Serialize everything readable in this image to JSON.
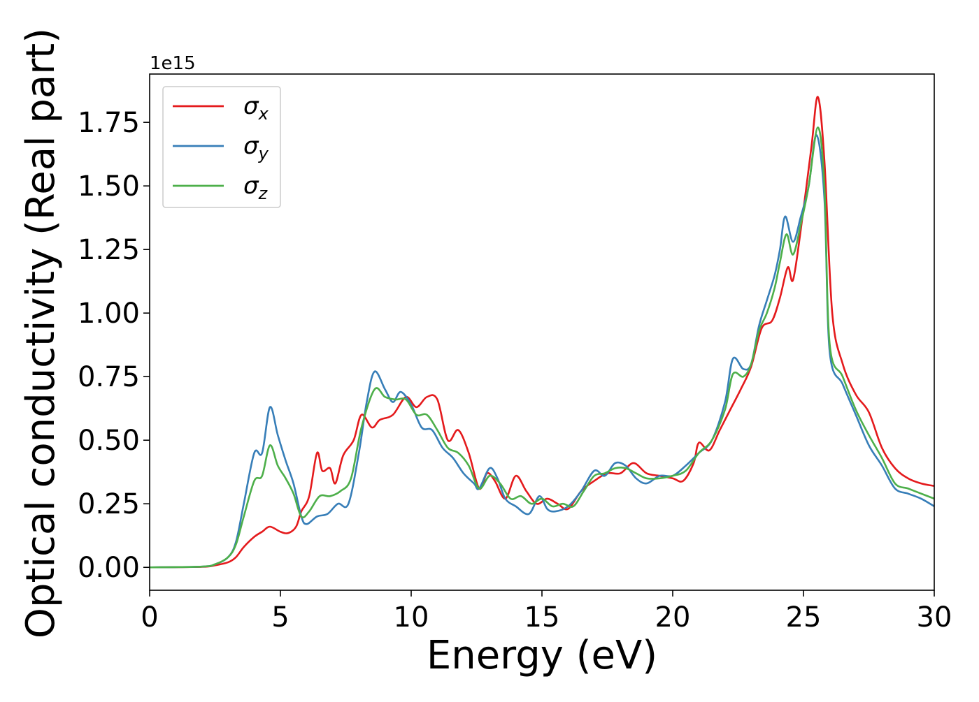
{
  "chart_data": {
    "type": "line",
    "xlabel": "Energy (eV)",
    "ylabel": "Optical conductivity (Real part)",
    "y_offset_label": "1e15",
    "xlim": [
      0,
      30
    ],
    "ylim": [
      -0.09,
      1.94
    ],
    "x_ticks": [
      0,
      5,
      10,
      15,
      20,
      25,
      30
    ],
    "y_ticks": [
      0.0,
      0.25,
      0.5,
      0.75,
      1.0,
      1.25,
      1.5,
      1.75
    ],
    "y_tick_labels": [
      "0.00",
      "0.25",
      "0.50",
      "0.75",
      "1.00",
      "1.25",
      "1.50",
      "1.75"
    ],
    "grid": false,
    "legend_position": "top-left",
    "series": [
      {
        "name": "σx",
        "symbol": "σ",
        "subscript": "x",
        "color": "#e41a1c",
        "points": [
          [
            0,
            0
          ],
          [
            2,
            0.002
          ],
          [
            2.5,
            0.008
          ],
          [
            3,
            0.02
          ],
          [
            3.3,
            0.04
          ],
          [
            3.6,
            0.08
          ],
          [
            4.0,
            0.12
          ],
          [
            4.3,
            0.14
          ],
          [
            4.6,
            0.16
          ],
          [
            5.0,
            0.14
          ],
          [
            5.3,
            0.135
          ],
          [
            5.6,
            0.16
          ],
          [
            5.8,
            0.22
          ],
          [
            6.1,
            0.28
          ],
          [
            6.4,
            0.45
          ],
          [
            6.6,
            0.38
          ],
          [
            6.9,
            0.39
          ],
          [
            7.1,
            0.33
          ],
          [
            7.4,
            0.44
          ],
          [
            7.8,
            0.5
          ],
          [
            8.1,
            0.6
          ],
          [
            8.5,
            0.55
          ],
          [
            8.8,
            0.58
          ],
          [
            9.3,
            0.6
          ],
          [
            9.8,
            0.67
          ],
          [
            10.2,
            0.63
          ],
          [
            10.6,
            0.67
          ],
          [
            11.0,
            0.66
          ],
          [
            11.4,
            0.5
          ],
          [
            11.8,
            0.54
          ],
          [
            12.2,
            0.45
          ],
          [
            12.6,
            0.31
          ],
          [
            12.9,
            0.37
          ],
          [
            13.2,
            0.34
          ],
          [
            13.6,
            0.27
          ],
          [
            14.0,
            0.36
          ],
          [
            14.4,
            0.3
          ],
          [
            14.8,
            0.25
          ],
          [
            15.2,
            0.27
          ],
          [
            15.6,
            0.25
          ],
          [
            16.0,
            0.23
          ],
          [
            16.5,
            0.3
          ],
          [
            17.0,
            0.34
          ],
          [
            17.5,
            0.37
          ],
          [
            18.0,
            0.37
          ],
          [
            18.5,
            0.41
          ],
          [
            19.0,
            0.37
          ],
          [
            19.5,
            0.36
          ],
          [
            20.0,
            0.35
          ],
          [
            20.4,
            0.34
          ],
          [
            20.8,
            0.41
          ],
          [
            21.0,
            0.49
          ],
          [
            21.4,
            0.46
          ],
          [
            21.8,
            0.54
          ],
          [
            22.2,
            0.62
          ],
          [
            22.6,
            0.7
          ],
          [
            23.0,
            0.79
          ],
          [
            23.4,
            0.94
          ],
          [
            23.8,
            0.97
          ],
          [
            24.1,
            1.06
          ],
          [
            24.4,
            1.18
          ],
          [
            24.6,
            1.13
          ],
          [
            24.9,
            1.33
          ],
          [
            25.3,
            1.65
          ],
          [
            25.55,
            1.85
          ],
          [
            25.8,
            1.6
          ],
          [
            26.1,
            1.0
          ],
          [
            26.5,
            0.8
          ],
          [
            27.0,
            0.68
          ],
          [
            27.5,
            0.61
          ],
          [
            28.0,
            0.47
          ],
          [
            28.5,
            0.39
          ],
          [
            29.0,
            0.35
          ],
          [
            29.5,
            0.33
          ],
          [
            30,
            0.32
          ]
        ]
      },
      {
        "name": "σy",
        "symbol": "σ",
        "subscript": "y",
        "color": "#377eb8",
        "points": [
          [
            0,
            0
          ],
          [
            2,
            0.003
          ],
          [
            2.5,
            0.012
          ],
          [
            3,
            0.04
          ],
          [
            3.3,
            0.1
          ],
          [
            3.6,
            0.25
          ],
          [
            4.0,
            0.45
          ],
          [
            4.3,
            0.45
          ],
          [
            4.6,
            0.63
          ],
          [
            4.9,
            0.52
          ],
          [
            5.2,
            0.42
          ],
          [
            5.5,
            0.33
          ],
          [
            5.8,
            0.2
          ],
          [
            6.0,
            0.17
          ],
          [
            6.4,
            0.2
          ],
          [
            6.8,
            0.21
          ],
          [
            7.2,
            0.25
          ],
          [
            7.6,
            0.25
          ],
          [
            8.0,
            0.45
          ],
          [
            8.3,
            0.65
          ],
          [
            8.6,
            0.77
          ],
          [
            9.0,
            0.7
          ],
          [
            9.3,
            0.65
          ],
          [
            9.6,
            0.69
          ],
          [
            10.0,
            0.64
          ],
          [
            10.4,
            0.55
          ],
          [
            10.8,
            0.54
          ],
          [
            11.2,
            0.47
          ],
          [
            11.6,
            0.43
          ],
          [
            12.0,
            0.37
          ],
          [
            12.4,
            0.33
          ],
          [
            12.6,
            0.31
          ],
          [
            13.0,
            0.39
          ],
          [
            13.3,
            0.35
          ],
          [
            13.6,
            0.27
          ],
          [
            14.0,
            0.24
          ],
          [
            14.5,
            0.21
          ],
          [
            14.9,
            0.28
          ],
          [
            15.2,
            0.23
          ],
          [
            15.5,
            0.22
          ],
          [
            16.0,
            0.24
          ],
          [
            16.5,
            0.3
          ],
          [
            17.0,
            0.38
          ],
          [
            17.4,
            0.36
          ],
          [
            17.8,
            0.41
          ],
          [
            18.2,
            0.4
          ],
          [
            18.6,
            0.35
          ],
          [
            19.0,
            0.33
          ],
          [
            19.5,
            0.36
          ],
          [
            20.0,
            0.36
          ],
          [
            20.5,
            0.4
          ],
          [
            21.0,
            0.45
          ],
          [
            21.5,
            0.5
          ],
          [
            22.0,
            0.65
          ],
          [
            22.3,
            0.82
          ],
          [
            22.7,
            0.78
          ],
          [
            23.0,
            0.8
          ],
          [
            23.3,
            0.95
          ],
          [
            23.6,
            1.05
          ],
          [
            23.9,
            1.15
          ],
          [
            24.1,
            1.25
          ],
          [
            24.3,
            1.38
          ],
          [
            24.6,
            1.28
          ],
          [
            24.9,
            1.38
          ],
          [
            25.2,
            1.5
          ],
          [
            25.5,
            1.7
          ],
          [
            25.8,
            1.45
          ],
          [
            26.0,
            0.85
          ],
          [
            26.5,
            0.72
          ],
          [
            27.0,
            0.6
          ],
          [
            27.5,
            0.48
          ],
          [
            28.0,
            0.4
          ],
          [
            28.5,
            0.31
          ],
          [
            29.0,
            0.29
          ],
          [
            29.5,
            0.27
          ],
          [
            30,
            0.24
          ]
        ]
      },
      {
        "name": "σz",
        "symbol": "σ",
        "subscript": "z",
        "color": "#4daf4a",
        "points": [
          [
            0,
            0
          ],
          [
            2,
            0.003
          ],
          [
            2.5,
            0.012
          ],
          [
            3,
            0.04
          ],
          [
            3.3,
            0.09
          ],
          [
            3.6,
            0.2
          ],
          [
            4.0,
            0.34
          ],
          [
            4.3,
            0.36
          ],
          [
            4.6,
            0.48
          ],
          [
            4.9,
            0.4
          ],
          [
            5.2,
            0.35
          ],
          [
            5.5,
            0.29
          ],
          [
            5.8,
            0.2
          ],
          [
            6.1,
            0.22
          ],
          [
            6.5,
            0.28
          ],
          [
            6.9,
            0.28
          ],
          [
            7.3,
            0.3
          ],
          [
            7.7,
            0.35
          ],
          [
            8.1,
            0.55
          ],
          [
            8.6,
            0.7
          ],
          [
            9.0,
            0.67
          ],
          [
            9.4,
            0.66
          ],
          [
            9.8,
            0.66
          ],
          [
            10.2,
            0.6
          ],
          [
            10.6,
            0.6
          ],
          [
            11.0,
            0.54
          ],
          [
            11.4,
            0.47
          ],
          [
            11.8,
            0.45
          ],
          [
            12.2,
            0.4
          ],
          [
            12.6,
            0.31
          ],
          [
            13.0,
            0.36
          ],
          [
            13.4,
            0.33
          ],
          [
            13.8,
            0.27
          ],
          [
            14.2,
            0.28
          ],
          [
            14.6,
            0.25
          ],
          [
            15.0,
            0.27
          ],
          [
            15.4,
            0.24
          ],
          [
            15.8,
            0.25
          ],
          [
            16.2,
            0.24
          ],
          [
            16.6,
            0.3
          ],
          [
            17.0,
            0.36
          ],
          [
            17.4,
            0.37
          ],
          [
            17.8,
            0.39
          ],
          [
            18.2,
            0.39
          ],
          [
            18.6,
            0.37
          ],
          [
            19.0,
            0.35
          ],
          [
            19.5,
            0.35
          ],
          [
            20.0,
            0.36
          ],
          [
            20.5,
            0.38
          ],
          [
            21.0,
            0.45
          ],
          [
            21.5,
            0.5
          ],
          [
            22.0,
            0.62
          ],
          [
            22.3,
            0.76
          ],
          [
            22.7,
            0.75
          ],
          [
            23.0,
            0.8
          ],
          [
            23.3,
            0.93
          ],
          [
            23.6,
            1.0
          ],
          [
            23.9,
            1.1
          ],
          [
            24.1,
            1.2
          ],
          [
            24.35,
            1.31
          ],
          [
            24.6,
            1.23
          ],
          [
            24.9,
            1.35
          ],
          [
            25.2,
            1.5
          ],
          [
            25.55,
            1.73
          ],
          [
            25.8,
            1.5
          ],
          [
            26.0,
            0.88
          ],
          [
            26.5,
            0.75
          ],
          [
            27.0,
            0.62
          ],
          [
            27.5,
            0.52
          ],
          [
            28.0,
            0.43
          ],
          [
            28.5,
            0.33
          ],
          [
            29.0,
            0.31
          ],
          [
            29.5,
            0.29
          ],
          [
            30,
            0.27
          ]
        ]
      }
    ]
  }
}
